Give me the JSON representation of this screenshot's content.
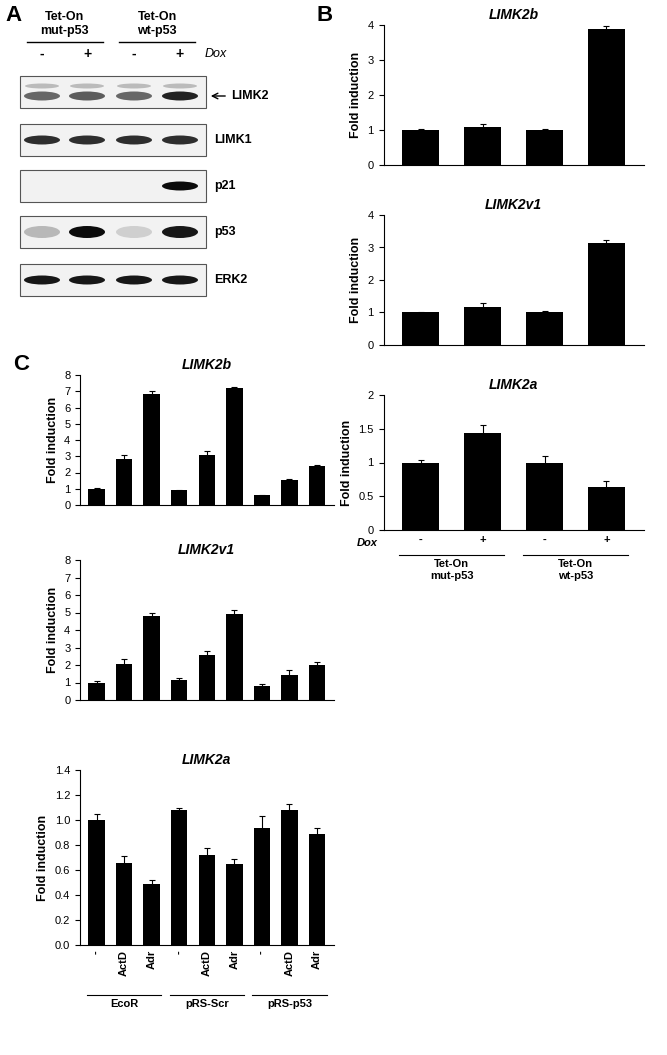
{
  "blot": {
    "panel": "A",
    "columns": [
      "Tet-On\nmut-p53",
      "Tet-On\nwt-p53"
    ],
    "treatment_label": "Dox",
    "lanes": [
      "-",
      "+",
      "-",
      "+"
    ],
    "rows": [
      "LIMK2",
      "LIMK1",
      "p21",
      "p53",
      "ERK2"
    ],
    "arrow_row": "LIMK2"
  },
  "chart_data": [
    {
      "type": "bar",
      "panel": "B",
      "title": "LIMK2b",
      "y_label": "Fold induction",
      "color": "#000000",
      "values": [
        1.0,
        1.1,
        1.0,
        3.9
      ],
      "errors": [
        0.03,
        0.08,
        0.04,
        0.07
      ],
      "ylim": [
        0,
        4
      ],
      "yticks": [
        0,
        1,
        2,
        3,
        4
      ],
      "tick_labels": "y",
      "grid": false
    },
    {
      "type": "bar",
      "panel": "B",
      "title": "LIMK2v1",
      "y_label": "Fold induction",
      "color": "#000000",
      "values": [
        1.0,
        1.18,
        1.0,
        3.15
      ],
      "errors": [
        0.02,
        0.1,
        0.06,
        0.07
      ],
      "ylim": [
        0,
        4
      ],
      "yticks": [
        0,
        1,
        2,
        3,
        4
      ],
      "tick_labels": "y",
      "grid": false
    },
    {
      "type": "bar",
      "panel": "B",
      "title": "LIMK2a",
      "y_label": "Fold induction",
      "color": "#000000",
      "categories": [
        "-",
        "+",
        "-",
        "+"
      ],
      "x_row_label": "Dox",
      "groups": [
        "Tet-On\nmut-p53",
        "Tet-On\nwt-p53"
      ],
      "values": [
        1.0,
        1.44,
        1.0,
        0.63
      ],
      "errors": [
        0.03,
        0.12,
        0.1,
        0.1
      ],
      "ylim": [
        0,
        2
      ],
      "yticks": [
        0,
        0.5,
        1,
        1.5,
        2
      ],
      "grid": false
    },
    {
      "type": "bar",
      "panel": "C",
      "title": "LIMK2b",
      "y_label": "Fold induction",
      "color": "#000000",
      "values": [
        1.0,
        2.85,
        6.85,
        0.9,
        3.1,
        7.2,
        0.6,
        1.55,
        2.4
      ],
      "errors": [
        0.03,
        0.25,
        0.15,
        0.03,
        0.25,
        0.05,
        0.03,
        0.05,
        0.05
      ],
      "ylim": [
        0,
        8
      ],
      "yticks": [
        0,
        1,
        2,
        3,
        4,
        5,
        6,
        7,
        8
      ],
      "tick_labels": "y",
      "grid": false
    },
    {
      "type": "bar",
      "panel": "C",
      "title": "LIMK2v1",
      "y_label": "Fold induction",
      "color": "#000000",
      "values": [
        1.0,
        2.05,
        4.8,
        1.15,
        2.6,
        4.9,
        0.8,
        1.45,
        2.0
      ],
      "errors": [
        0.1,
        0.3,
        0.2,
        0.1,
        0.2,
        0.25,
        0.1,
        0.25,
        0.15
      ],
      "ylim": [
        0,
        8
      ],
      "yticks": [
        0,
        1,
        2,
        3,
        4,
        5,
        6,
        7,
        8
      ],
      "tick_labels": "y",
      "grid": false
    },
    {
      "type": "bar",
      "panel": "C",
      "title": "LIMK2a",
      "y_label": "Fold induction",
      "color": "#000000",
      "categories": [
        "-",
        "ActD",
        "Adr",
        "-",
        "ActD",
        "Adr",
        "-",
        "ActD",
        "Adr"
      ],
      "groups": [
        "EcoR",
        "pRS-Scr",
        "pRS-p53"
      ],
      "values": [
        1.0,
        0.66,
        0.49,
        1.08,
        0.72,
        0.65,
        0.94,
        1.08,
        0.89
      ],
      "errors": [
        0.05,
        0.05,
        0.03,
        0.02,
        0.06,
        0.04,
        0.09,
        0.05,
        0.05
      ],
      "ylim": [
        0.0,
        1.4
      ],
      "yticks": [
        0.0,
        0.2,
        0.4,
        0.6,
        0.8,
        1.0,
        1.2,
        1.4
      ],
      "grid": false
    }
  ]
}
